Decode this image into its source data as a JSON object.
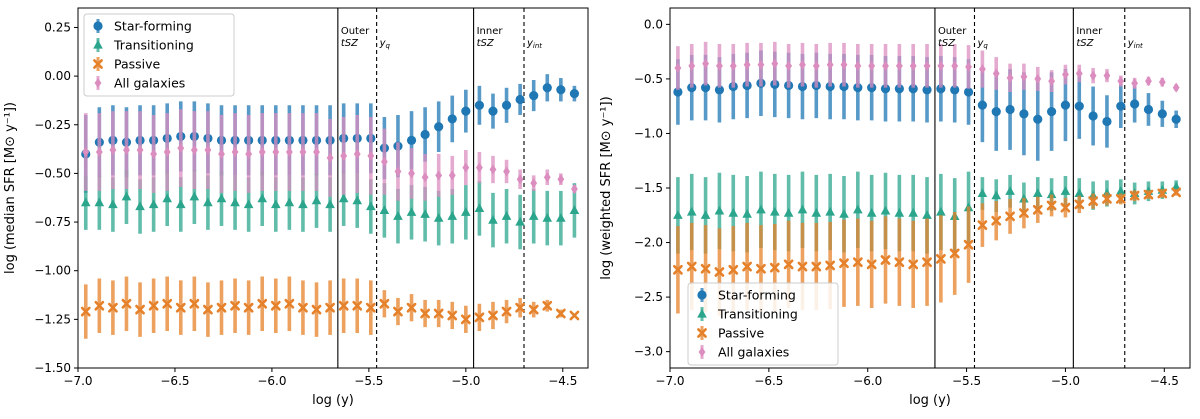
{
  "chart_data": [
    {
      "type": "errorbar",
      "xlabel": "log (y)",
      "ylabel": "log (median SFR [M⊙ y⁻¹])",
      "xlim": [
        -7.0,
        -4.37
      ],
      "ylim": [
        -1.5,
        0.35
      ],
      "xticks": [
        -7.0,
        -6.5,
        -6.0,
        -5.5,
        -5.0,
        -4.5
      ],
      "xtick_labels": [
        "−7.0",
        "−6.5",
        "−6.0",
        "−5.5",
        "−5.0",
        "−4.5"
      ],
      "yticks": [
        -1.5,
        -1.25,
        -1.0,
        -0.75,
        -0.5,
        -0.25,
        0.0,
        0.25
      ],
      "ytick_labels": [
        "−1.50",
        "−1.25",
        "−1.00",
        "−0.75",
        "−0.50",
        "−0.25",
        "0.00",
        "0.25"
      ],
      "legend_position": "top-left",
      "vlines": [
        {
          "x": -5.66,
          "style": "solid",
          "label_top": "Outer",
          "label_bottom": "tSZ"
        },
        {
          "x": -5.46,
          "style": "dashed",
          "label_top": "y",
          "label_sub": "q"
        },
        {
          "x": -4.96,
          "style": "solid",
          "label_top": "Inner",
          "label_bottom": "tSZ"
        },
        {
          "x": -4.7,
          "style": "dashed",
          "label_top": "y",
          "label_sub": "int"
        }
      ],
      "x": [
        -6.96,
        -6.89,
        -6.82,
        -6.75,
        -6.68,
        -6.61,
        -6.54,
        -6.47,
        -6.4,
        -6.33,
        -6.26,
        -6.19,
        -6.12,
        -6.05,
        -5.98,
        -5.91,
        -5.84,
        -5.77,
        -5.7,
        -5.63,
        -5.56,
        -5.49,
        -5.42,
        -5.35,
        -5.28,
        -5.21,
        -5.14,
        -5.07,
        -5.0,
        -4.93,
        -4.86,
        -4.79,
        -4.72,
        -4.65,
        -4.58,
        -4.51,
        -4.44
      ],
      "series": [
        {
          "name": "Star-forming",
          "color": "#1f77b4",
          "marker": "circle",
          "values": [
            -0.4,
            -0.34,
            -0.33,
            -0.34,
            -0.33,
            -0.33,
            -0.32,
            -0.31,
            -0.31,
            -0.32,
            -0.33,
            -0.33,
            -0.33,
            -0.33,
            -0.33,
            -0.33,
            -0.33,
            -0.33,
            -0.33,
            -0.32,
            -0.32,
            -0.32,
            -0.37,
            -0.36,
            -0.33,
            -0.3,
            -0.26,
            -0.22,
            -0.18,
            -0.15,
            -0.18,
            -0.15,
            -0.12,
            -0.1,
            -0.06,
            -0.07,
            -0.09
          ],
          "err": [
            0.2,
            0.18,
            0.18,
            0.18,
            0.18,
            0.18,
            0.18,
            0.18,
            0.18,
            0.18,
            0.18,
            0.18,
            0.18,
            0.18,
            0.18,
            0.18,
            0.18,
            0.18,
            0.18,
            0.18,
            0.18,
            0.18,
            0.16,
            0.16,
            0.15,
            0.14,
            0.13,
            0.12,
            0.11,
            0.1,
            0.09,
            0.09,
            0.08,
            0.08,
            0.07,
            0.06,
            0.04
          ]
        },
        {
          "name": "Transitioning",
          "color": "#2ca58d",
          "marker": "triangle",
          "values": [
            -0.65,
            -0.65,
            -0.66,
            -0.62,
            -0.67,
            -0.66,
            -0.63,
            -0.66,
            -0.62,
            -0.65,
            -0.63,
            -0.65,
            -0.66,
            -0.63,
            -0.66,
            -0.65,
            -0.66,
            -0.64,
            -0.66,
            -0.63,
            -0.64,
            -0.67,
            -0.69,
            -0.72,
            -0.7,
            -0.71,
            -0.73,
            -0.72,
            -0.7,
            -0.68,
            -0.74,
            -0.72,
            -0.75,
            -0.72,
            -0.73,
            -0.73,
            -0.69
          ]
        },
        {
          "name": "Passive",
          "color": "#e5812a",
          "marker": "x",
          "values": [
            -1.21,
            -1.18,
            -1.19,
            -1.17,
            -1.2,
            -1.18,
            -1.17,
            -1.19,
            -1.17,
            -1.2,
            -1.19,
            -1.18,
            -1.19,
            -1.17,
            -1.18,
            -1.17,
            -1.19,
            -1.2,
            -1.19,
            -1.18,
            -1.18,
            -1.19,
            -1.17,
            -1.21,
            -1.19,
            -1.22,
            -1.22,
            -1.23,
            -1.25,
            -1.24,
            -1.23,
            -1.21,
            -1.19,
            -1.2,
            -1.18,
            -1.22,
            -1.23
          ],
          "err": [
            0.14,
            0.14,
            0.14,
            0.14,
            0.14,
            0.14,
            0.14,
            0.14,
            0.14,
            0.14,
            0.14,
            0.14,
            0.14,
            0.14,
            0.14,
            0.14,
            0.14,
            0.14,
            0.14,
            0.14,
            0.14,
            0.14,
            0.07,
            0.07,
            0.07,
            0.07,
            0.07,
            0.07,
            0.07,
            0.07,
            0.07,
            0.06,
            0.05,
            0.04,
            0.03,
            0.02,
            0.01
          ]
        },
        {
          "name": "All galaxies",
          "color": "#db8dbf",
          "marker": "diamond",
          "values": [
            -0.39,
            -0.39,
            -0.38,
            -0.38,
            -0.38,
            -0.4,
            -0.39,
            -0.37,
            -0.38,
            -0.38,
            -0.4,
            -0.39,
            -0.4,
            -0.39,
            -0.39,
            -0.39,
            -0.39,
            -0.39,
            -0.42,
            -0.41,
            -0.4,
            -0.41,
            -0.44,
            -0.49,
            -0.5,
            -0.52,
            -0.51,
            -0.51,
            -0.47,
            -0.47,
            -0.48,
            -0.49,
            -0.53,
            -0.55,
            -0.52,
            -0.53,
            -0.58
          ],
          "err": [
            0.2,
            0.2,
            0.2,
            0.2,
            0.2,
            0.2,
            0.2,
            0.2,
            0.2,
            0.2,
            0.2,
            0.2,
            0.2,
            0.2,
            0.2,
            0.2,
            0.2,
            0.2,
            0.2,
            0.2,
            0.2,
            0.2,
            0.17,
            0.15,
            0.13,
            0.12,
            0.11,
            0.1,
            0.09,
            0.08,
            0.07,
            0.06,
            0.05,
            0.04,
            0.04,
            0.03,
            0.02
          ]
        }
      ]
    },
    {
      "type": "errorbar",
      "xlabel": "log (y)",
      "ylabel": "log (weighted SFR [M⊙ y⁻¹])",
      "xlim": [
        -7.0,
        -4.37
      ],
      "ylim": [
        -3.15,
        0.15
      ],
      "xticks": [
        -7.0,
        -6.5,
        -6.0,
        -5.5,
        -5.0,
        -4.5
      ],
      "xtick_labels": [
        "−7.0",
        "−6.5",
        "−6.0",
        "−5.5",
        "−5.0",
        "−4.5"
      ],
      "yticks": [
        -3.0,
        -2.5,
        -2.0,
        -1.5,
        -1.0,
        -0.5,
        0.0
      ],
      "ytick_labels": [
        "−3.0",
        "−2.5",
        "−2.0",
        "−1.5",
        "−1.0",
        "−0.5",
        "0.0"
      ],
      "legend_position": "bottom-left",
      "vlines": [
        {
          "x": -5.66,
          "style": "solid",
          "label_top": "Outer",
          "label_bottom": "tSZ"
        },
        {
          "x": -5.46,
          "style": "dashed",
          "label_top": "y",
          "label_sub": "q"
        },
        {
          "x": -4.96,
          "style": "solid",
          "label_top": "Inner",
          "label_bottom": "tSZ"
        },
        {
          "x": -4.7,
          "style": "dashed",
          "label_top": "y",
          "label_sub": "int"
        }
      ],
      "x": [
        -6.96,
        -6.89,
        -6.82,
        -6.75,
        -6.68,
        -6.61,
        -6.54,
        -6.47,
        -6.4,
        -6.33,
        -6.26,
        -6.19,
        -6.12,
        -6.05,
        -5.98,
        -5.91,
        -5.84,
        -5.77,
        -5.7,
        -5.63,
        -5.56,
        -5.49,
        -5.42,
        -5.35,
        -5.28,
        -5.21,
        -5.14,
        -5.07,
        -5.0,
        -4.93,
        -4.86,
        -4.79,
        -4.72,
        -4.65,
        -4.58,
        -4.51,
        -4.44
      ],
      "series": [
        {
          "name": "Star-forming",
          "color": "#1f77b4",
          "marker": "circle",
          "values": [
            -0.62,
            -0.58,
            -0.58,
            -0.6,
            -0.57,
            -0.56,
            -0.54,
            -0.55,
            -0.56,
            -0.57,
            -0.56,
            -0.57,
            -0.57,
            -0.58,
            -0.58,
            -0.59,
            -0.59,
            -0.59,
            -0.6,
            -0.59,
            -0.6,
            -0.62,
            -0.74,
            -0.8,
            -0.78,
            -0.82,
            -0.87,
            -0.8,
            -0.74,
            -0.75,
            -0.84,
            -0.89,
            -0.75,
            -0.73,
            -0.78,
            -0.82,
            -0.87
          ],
          "err": [
            0.3,
            0.3,
            0.3,
            0.3,
            0.3,
            0.3,
            0.3,
            0.3,
            0.3,
            0.3,
            0.3,
            0.3,
            0.3,
            0.3,
            0.3,
            0.3,
            0.3,
            0.3,
            0.3,
            0.3,
            0.3,
            0.3,
            0.34,
            0.36,
            0.37,
            0.38,
            0.38,
            0.36,
            0.33,
            0.3,
            0.27,
            0.24,
            0.2,
            0.17,
            0.15,
            0.12,
            0.08
          ]
        },
        {
          "name": "Transitioning",
          "color": "#2ca58d",
          "marker": "triangle",
          "values": [
            -1.75,
            -1.72,
            -1.75,
            -1.71,
            -1.73,
            -1.74,
            -1.7,
            -1.72,
            -1.73,
            -1.7,
            -1.73,
            -1.72,
            -1.74,
            -1.7,
            -1.73,
            -1.71,
            -1.73,
            -1.73,
            -1.75,
            -1.72,
            -1.76,
            -1.68,
            -1.55,
            -1.57,
            -1.53,
            -1.6,
            -1.55,
            -1.56,
            -1.53,
            -1.55,
            -1.57,
            -1.55,
            -1.53,
            -1.55,
            -1.53,
            -1.52,
            -1.49
          ],
          "err": [
            0.35,
            0.35,
            0.35,
            0.35,
            0.35,
            0.35,
            0.35,
            0.35,
            0.35,
            0.35,
            0.35,
            0.35,
            0.35,
            0.35,
            0.35,
            0.35,
            0.35,
            0.35,
            0.35,
            0.35,
            0.35,
            0.33,
            0.15,
            0.15,
            0.15,
            0.15,
            0.15,
            0.15,
            0.14,
            0.14,
            0.13,
            0.12,
            0.11,
            0.1,
            0.09,
            0.08,
            0.06
          ]
        },
        {
          "name": "Passive",
          "color": "#e5812a",
          "marker": "x",
          "values": [
            -2.25,
            -2.22,
            -2.24,
            -2.27,
            -2.25,
            -2.22,
            -2.24,
            -2.23,
            -2.2,
            -2.22,
            -2.22,
            -2.21,
            -2.19,
            -2.18,
            -2.2,
            -2.16,
            -2.18,
            -2.2,
            -2.18,
            -2.15,
            -2.1,
            -2.02,
            -1.84,
            -1.8,
            -1.76,
            -1.73,
            -1.7,
            -1.66,
            -1.68,
            -1.65,
            -1.62,
            -1.6,
            -1.6,
            -1.57,
            -1.56,
            -1.55,
            -1.54
          ],
          "err": [
            0.4,
            0.4,
            0.4,
            0.4,
            0.4,
            0.4,
            0.4,
            0.4,
            0.4,
            0.4,
            0.4,
            0.4,
            0.4,
            0.4,
            0.4,
            0.4,
            0.4,
            0.4,
            0.4,
            0.4,
            0.38,
            0.35,
            0.2,
            0.18,
            0.16,
            0.14,
            0.12,
            0.1,
            0.09,
            0.08,
            0.07,
            0.06,
            0.05,
            0.05,
            0.04,
            0.04,
            0.03
          ]
        },
        {
          "name": "All galaxies",
          "color": "#db8dbf",
          "marker": "diamond",
          "values": [
            -0.4,
            -0.38,
            -0.36,
            -0.38,
            -0.38,
            -0.37,
            -0.37,
            -0.36,
            -0.38,
            -0.37,
            -0.38,
            -0.37,
            -0.37,
            -0.38,
            -0.38,
            -0.38,
            -0.38,
            -0.38,
            -0.38,
            -0.38,
            -0.38,
            -0.39,
            -0.41,
            -0.45,
            -0.49,
            -0.48,
            -0.5,
            -0.52,
            -0.46,
            -0.45,
            -0.47,
            -0.47,
            -0.52,
            -0.54,
            -0.52,
            -0.53,
            -0.58
          ],
          "err": [
            0.2,
            0.2,
            0.2,
            0.2,
            0.2,
            0.2,
            0.2,
            0.2,
            0.2,
            0.2,
            0.2,
            0.2,
            0.2,
            0.2,
            0.2,
            0.2,
            0.2,
            0.2,
            0.2,
            0.2,
            0.2,
            0.2,
            0.17,
            0.15,
            0.13,
            0.12,
            0.11,
            0.1,
            0.09,
            0.08,
            0.07,
            0.06,
            0.05,
            0.05,
            0.04,
            0.04,
            0.03
          ]
        }
      ]
    }
  ]
}
